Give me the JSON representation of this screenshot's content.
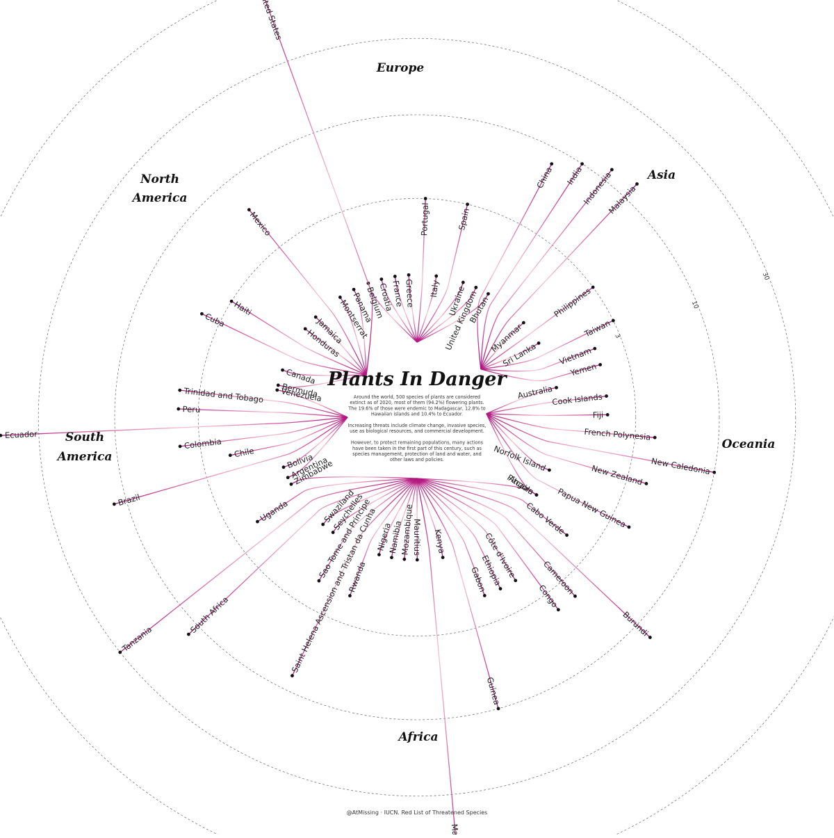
{
  "title": "Plants In Danger",
  "description": [
    "Around the world, 500 species of plants are considered",
    "extinct as of 2020, most of them (94.2%) flowering plants.",
    "The 19.6% of those were endemic to Madagascar, 12.8% to",
    "Hawaiian islands and 10.4% to Ecuador.",
    "",
    "Increasing threats include climate change, invasive species,",
    "use as biological resources, and commercial development.",
    "",
    "However, to protect remaining populations, many actions",
    "have been taken in the first part of this century, such as",
    "species management, protection of land and water, and",
    "other laws and policies."
  ],
  "caption": "@AtMissing · IUCN. Red List of Threatened Species",
  "colors": {
    "line_dark": "#b0127e",
    "line_light": "#f7c3cf",
    "ring": "#777777",
    "dot": "#111111"
  },
  "chart_data": {
    "type": "radial-dendrogram",
    "scale": "log",
    "ring_ticks": [
      3,
      10,
      30,
      100
    ],
    "groups": [
      {
        "name": "Europe",
        "countries": [
          {
            "name": "Belgium",
            "value": 1
          },
          {
            "name": "Croatia",
            "value": 1
          },
          {
            "name": "France",
            "value": 1
          },
          {
            "name": "Greece",
            "value": 1
          },
          {
            "name": "Portugal",
            "value": 3
          },
          {
            "name": "Italy",
            "value": 1
          },
          {
            "name": "Spain",
            "value": 3
          },
          {
            "name": "Ukraine",
            "value": 1
          },
          {
            "name": "United Kingdom",
            "value": 1
          },
          {
            "name": "Bhutan",
            "value": 1
          }
        ]
      },
      {
        "name": "Asia",
        "countries": [
          {
            "name": "China",
            "value": 8
          },
          {
            "name": "India",
            "value": 10
          },
          {
            "name": "Indonesia",
            "value": 12
          },
          {
            "name": "Malaysia",
            "value": 13
          },
          {
            "name": "Myanmar",
            "value": 1
          },
          {
            "name": "Philippines",
            "value": 3
          },
          {
            "name": "Sri Lanka",
            "value": 1
          },
          {
            "name": "Taiwan",
            "value": 3
          },
          {
            "name": "Vietnam",
            "value": 2
          },
          {
            "name": "Yemen",
            "value": 2
          }
        ]
      },
      {
        "name": "Oceania",
        "countries": [
          {
            "name": "Australia",
            "value": 1
          },
          {
            "name": "Cook Islands",
            "value": 2
          },
          {
            "name": "Fiji",
            "value": 2
          },
          {
            "name": "French Polynesia",
            "value": 4
          },
          {
            "name": "New Caledonia",
            "value": 10
          },
          {
            "name": "New Zealand",
            "value": 4
          },
          {
            "name": "Norfolk Island",
            "value": 1
          },
          {
            "name": "Papua New Guinea",
            "value": 4
          },
          {
            "name": "Pitcairn",
            "value": 1
          }
        ]
      },
      {
        "name": "Africa",
        "countries": [
          {
            "name": "Angola",
            "value": 1
          },
          {
            "name": "Cabo Verde",
            "value": 2
          },
          {
            "name": "Burundi",
            "value": 13
          },
          {
            "name": "Cameroon",
            "value": 4
          },
          {
            "name": "Congo",
            "value": 4
          },
          {
            "name": "Côte d'Ivoire",
            "value": 2
          },
          {
            "name": "Ethiopia",
            "value": 2
          },
          {
            "name": "Gabon",
            "value": 2
          },
          {
            "name": "Guinea",
            "value": 10
          },
          {
            "name": "Kenya",
            "value": 1
          },
          {
            "name": "Madagascar",
            "value": 98
          },
          {
            "name": "Mauritius",
            "value": 1
          },
          {
            "name": "Mozambique",
            "value": 1
          },
          {
            "name": "Namibia",
            "value": 1
          },
          {
            "name": "Nigeria",
            "value": 1
          },
          {
            "name": "Rwanda",
            "value": 2
          },
          {
            "name": "Saint Helena Ascension and Tristan da Cunha",
            "value": 8
          },
          {
            "name": "Sao Tome and Principe",
            "value": 2
          },
          {
            "name": "Seychelles",
            "value": 1
          },
          {
            "name": "Swaziland",
            "value": 1
          },
          {
            "name": "South Africa",
            "value": 12
          },
          {
            "name": "Tanzania",
            "value": 30
          },
          {
            "name": "Uganda",
            "value": 2
          },
          {
            "name": "Zimbabwe",
            "value": 1
          }
        ]
      },
      {
        "name": "South America",
        "countries": [
          {
            "name": "Argentina",
            "value": 1
          },
          {
            "name": "Bolivia",
            "value": 1
          },
          {
            "name": "Brazil",
            "value": 12
          },
          {
            "name": "Chile",
            "value": 2
          },
          {
            "name": "Colombia",
            "value": 4
          },
          {
            "name": "Ecuador",
            "value": 52
          },
          {
            "name": "Peru",
            "value": 4
          },
          {
            "name": "Trinidad and Tobago",
            "value": 4
          },
          {
            "name": "Venezuela",
            "value": 1
          }
        ]
      },
      {
        "name": "North America",
        "countries": [
          {
            "name": "Bermuda",
            "value": 1
          },
          {
            "name": "Canada",
            "value": 1
          },
          {
            "name": "Cuba",
            "value": 4
          },
          {
            "name": "Haiti",
            "value": 3
          },
          {
            "name": "Honduras",
            "value": 1
          },
          {
            "name": "Jamaica",
            "value": 1
          },
          {
            "name": "Mexico",
            "value": 6
          },
          {
            "name": "Montserrat",
            "value": 1
          },
          {
            "name": "Panama",
            "value": 1
          },
          {
            "name": "United States",
            "value": 97
          }
        ]
      }
    ]
  }
}
